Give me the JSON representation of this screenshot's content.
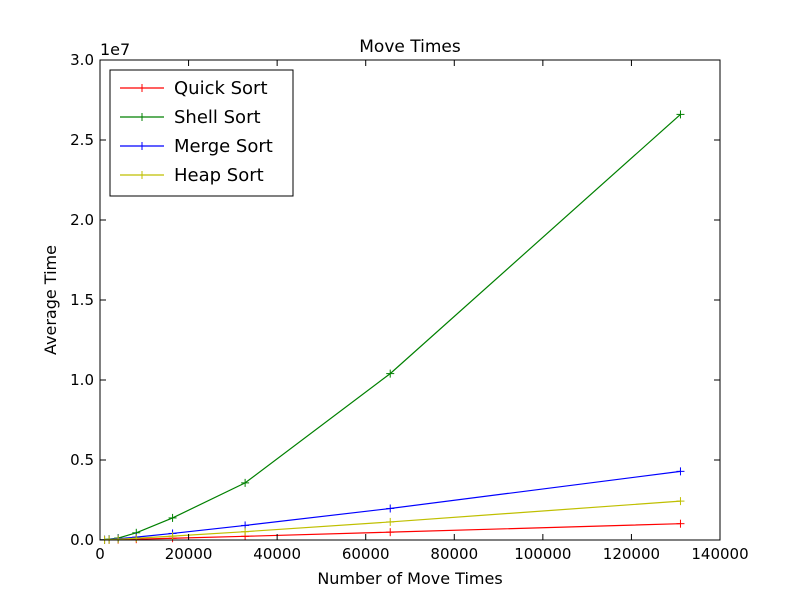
{
  "chart_data": {
    "type": "line",
    "title": "Move Times",
    "xlabel": "Number of Move Times",
    "ylabel": "Average Time",
    "y_offset_label": "1e7",
    "xlim": [
      0,
      140000
    ],
    "ylim": [
      0,
      30000000
    ],
    "x_ticks": [
      0,
      20000,
      40000,
      60000,
      80000,
      100000,
      120000,
      140000
    ],
    "x_tick_labels": [
      "0",
      "20000",
      "40000",
      "60000",
      "80000",
      "100000",
      "120000",
      "140000"
    ],
    "y_ticks": [
      0,
      5000000,
      10000000,
      15000000,
      20000000,
      25000000,
      30000000
    ],
    "y_tick_labels": [
      "0.0",
      "0.5",
      "1.0",
      "1.5",
      "2.0",
      "2.5",
      "3.0"
    ],
    "grid": false,
    "legend_position": "top-left",
    "x": [
      1024,
      2048,
      4096,
      8192,
      16384,
      32768,
      65536,
      131072
    ],
    "series": [
      {
        "name": "Quick Sort",
        "color": "#ff0000",
        "values": [
          5000,
          10000,
          22000,
          50000,
          110000,
          230000,
          490000,
          1020000
        ]
      },
      {
        "name": "Shell Sort",
        "color": "#008000",
        "values": [
          20000,
          50000,
          120000,
          450000,
          1380000,
          3570000,
          10400000,
          26600000
        ]
      },
      {
        "name": "Merge Sort",
        "color": "#0000ff",
        "values": [
          15000,
          30000,
          80000,
          180000,
          410000,
          910000,
          1970000,
          4290000
        ]
      },
      {
        "name": "Heap Sort",
        "color": "#bfbf00",
        "values": [
          8000,
          20000,
          50000,
          110000,
          240000,
          520000,
          1130000,
          2430000
        ]
      }
    ]
  }
}
